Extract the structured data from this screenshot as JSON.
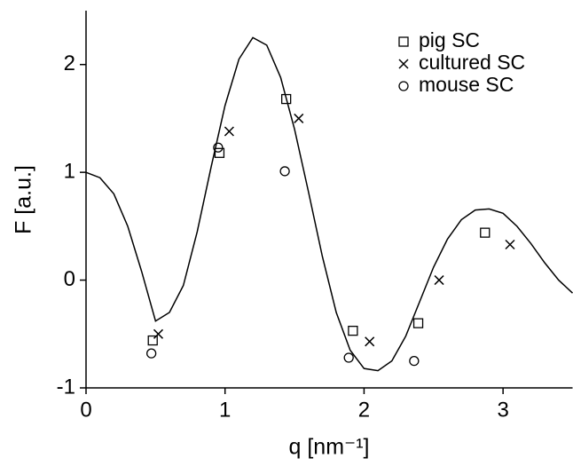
{
  "chart_data": {
    "type": "scatter",
    "xlabel": "q [nm⁻¹]",
    "ylabel": "F [a.u.]",
    "xlim": [
      0,
      3.5
    ],
    "ylim": [
      -1,
      2.5
    ],
    "xticks": [
      0,
      1,
      2,
      3
    ],
    "yticks": [
      -1,
      0,
      1,
      2
    ],
    "legend": "upper right",
    "curve": {
      "color": "#000000",
      "x": [
        0,
        0.1,
        0.2,
        0.3,
        0.4,
        0.5,
        0.6,
        0.7,
        0.8,
        0.9,
        1.0,
        1.1,
        1.2,
        1.3,
        1.4,
        1.5,
        1.6,
        1.7,
        1.8,
        1.9,
        2.0,
        2.1,
        2.2,
        2.3,
        2.4,
        2.5,
        2.6,
        2.7,
        2.8,
        2.9,
        3.0,
        3.1,
        3.2,
        3.3,
        3.4,
        3.5
      ],
      "values": [
        1.0,
        0.95,
        0.8,
        0.5,
        0.08,
        -0.38,
        -0.3,
        -0.05,
        0.45,
        1.05,
        1.62,
        2.05,
        2.25,
        2.18,
        1.88,
        1.4,
        0.82,
        0.22,
        -0.3,
        -0.65,
        -0.82,
        -0.84,
        -0.75,
        -0.52,
        -0.2,
        0.12,
        0.38,
        0.56,
        0.65,
        0.66,
        0.62,
        0.5,
        0.34,
        0.16,
        0.0,
        -0.12
      ]
    },
    "series": [
      {
        "name": "pig SC",
        "marker": "square",
        "color": "#000000",
        "x": [
          0.48,
          0.96,
          1.44,
          1.92,
          2.39,
          2.87
        ],
        "values": [
          -0.56,
          1.18,
          1.68,
          -0.47,
          -0.4,
          0.44
        ]
      },
      {
        "name": "cultured SC",
        "marker": "cross",
        "color": "#000000",
        "x": [
          0.52,
          1.03,
          1.53,
          2.04,
          2.54,
          3.05
        ],
        "values": [
          -0.5,
          1.38,
          1.5,
          -0.57,
          0.0,
          0.33
        ]
      },
      {
        "name": "mouse SC",
        "marker": "circle",
        "color": "#000000",
        "x": [
          0.47,
          0.95,
          1.43,
          1.89,
          2.36
        ],
        "values": [
          -0.68,
          1.23,
          1.01,
          -0.72,
          -0.75
        ]
      }
    ]
  }
}
